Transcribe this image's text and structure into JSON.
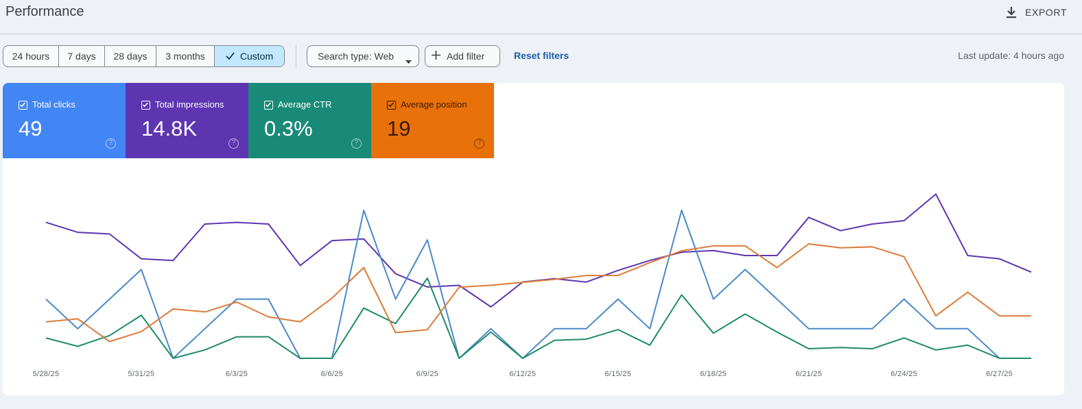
{
  "header": {
    "title": "Performance",
    "export_label": "EXPORT",
    "export_icon": "download-icon"
  },
  "toolbar": {
    "date_ranges": [
      {
        "label": "24 hours",
        "active": false
      },
      {
        "label": "7 days",
        "active": false
      },
      {
        "label": "28 days",
        "active": false
      },
      {
        "label": "3 months",
        "active": false
      },
      {
        "label": "Custom",
        "active": true
      }
    ],
    "search_type": "Search type: Web",
    "add_filter": "Add filter",
    "reset_filters": "Reset filters",
    "last_update": "Last update: 4 hours ago"
  },
  "metrics": [
    {
      "label": "Total clicks",
      "value": "49",
      "color": "#4285f4",
      "checked": true
    },
    {
      "label": "Total impressions",
      "value": "14.8K",
      "color": "#5e35b1",
      "checked": true
    },
    {
      "label": "Average CTR",
      "value": "0.3%",
      "color": "#1a8a78",
      "checked": true
    },
    {
      "label": "Average position",
      "value": "19",
      "color": "#e8710a",
      "checked": true
    }
  ],
  "chart_data": {
    "type": "line",
    "x": [
      "5/28/25",
      "5/29/25",
      "5/30/25",
      "5/31/25",
      "6/1/25",
      "6/2/25",
      "6/3/25",
      "6/4/25",
      "6/5/25",
      "6/6/25",
      "6/7/25",
      "6/8/25",
      "6/9/25",
      "6/10/25",
      "6/11/25",
      "6/12/25",
      "6/13/25",
      "6/14/25",
      "6/15/25",
      "6/16/25",
      "6/17/25",
      "6/18/25",
      "6/19/25",
      "6/20/25",
      "6/21/25",
      "6/22/25",
      "6/23/25",
      "6/24/25",
      "6/25/25",
      "6/26/25",
      "6/27/25",
      "6/28/25"
    ],
    "xticks": [
      "5/28/25",
      "5/31/25",
      "6/3/25",
      "6/6/25",
      "6/9/25",
      "6/12/25",
      "6/15/25",
      "6/18/25",
      "6/21/25",
      "6/24/25",
      "6/27/25"
    ],
    "yaxis_visible": false,
    "grid": false,
    "series": [
      {
        "color": "#5e35b1",
        "values": [
          0.82,
          0.76,
          0.75,
          0.6,
          0.59,
          0.81,
          0.82,
          0.81,
          0.56,
          0.71,
          0.72,
          0.51,
          0.43,
          0.44,
          0.31,
          0.46,
          0.48,
          0.46,
          0.53,
          0.59,
          0.64,
          0.65,
          0.62,
          0.62,
          0.85,
          0.77,
          0.81,
          0.83,
          0.99,
          0.62,
          0.6,
          0.52
        ]
      },
      {
        "color": "#4a89c8",
        "values": [
          2,
          1,
          2,
          3,
          0,
          1,
          2,
          2,
          0,
          0,
          5,
          2,
          4,
          0,
          1,
          0,
          1,
          1,
          2,
          1,
          5,
          2,
          3,
          2,
          1,
          1,
          1,
          2,
          1,
          1,
          0,
          0
        ]
      },
      {
        "color": "#1e8a68",
        "values": [
          0.17,
          0.1,
          0.19,
          0.36,
          0.0,
          0.07,
          0.18,
          0.18,
          0.0,
          0.0,
          0.42,
          0.29,
          0.67,
          0.0,
          0.22,
          0.0,
          0.15,
          0.16,
          0.24,
          0.11,
          0.53,
          0.21,
          0.37,
          0.22,
          0.08,
          0.09,
          0.08,
          0.17,
          0.07,
          0.11,
          0.0,
          0.0
        ]
      },
      {
        "color": "#db7c3a",
        "values": [
          0.28,
          0.31,
          0.08,
          0.18,
          0.41,
          0.38,
          0.48,
          0.33,
          0.28,
          0.52,
          0.83,
          0.17,
          0.2,
          0.63,
          0.65,
          0.68,
          0.71,
          0.75,
          0.75,
          0.88,
          1.0,
          1.05,
          1.05,
          0.83,
          1.07,
          1.03,
          1.04,
          0.94,
          0.34,
          0.58,
          0.34,
          0.34
        ]
      }
    ]
  }
}
